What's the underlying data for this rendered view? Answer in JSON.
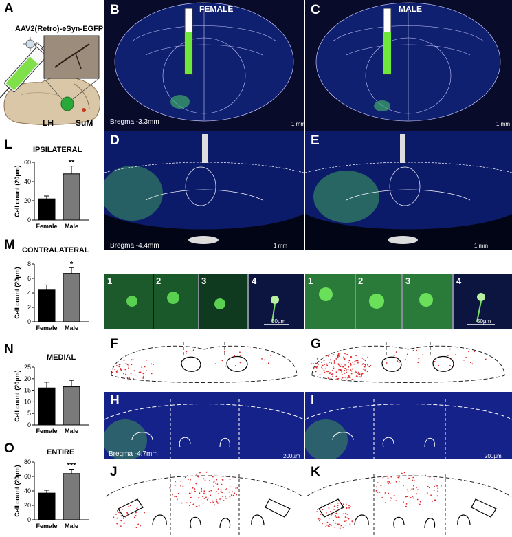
{
  "panels": {
    "A": "A",
    "B": "B",
    "C": "C",
    "D": "D",
    "E": "E",
    "F": "F",
    "G": "G",
    "H": "H",
    "I": "I",
    "J": "J",
    "K": "K",
    "L": "L",
    "M": "M",
    "N": "N",
    "O": "O"
  },
  "virus_label": "AAV2(Retro)-eSyn-EGFP",
  "region_labels": {
    "lh": "LH",
    "sum": "SuM"
  },
  "sex_labels": {
    "female": "FEMALE",
    "male": "MALE"
  },
  "bregma": {
    "b": "Bregma -3.3mm",
    "d": "Bregma -4.4mm",
    "h": "Bregma -4.7mm"
  },
  "scale_bars": {
    "mm": "1 mm",
    "um50": "50µm",
    "um200": "200µm"
  },
  "inset_numbers": [
    "1",
    "2",
    "3",
    "4"
  ],
  "colors": {
    "tissue": "#0a1450",
    "gfp": "#4fd04a",
    "dots": "#e0282a",
    "female_bar": "#000000",
    "male_bar": "#7a7a7a"
  },
  "chart_data": [
    {
      "type": "bar",
      "title": "IPSILATERAL",
      "ylabel": "Cell count (20µm)",
      "categories": [
        "Female",
        "Male"
      ],
      "values": [
        22,
        48
      ],
      "errors": [
        3,
        8
      ],
      "ylim": [
        0,
        60
      ],
      "yticks": [
        0,
        20,
        40,
        60
      ],
      "significance": "**"
    },
    {
      "type": "bar",
      "title": "CONTRALATERAL",
      "ylabel": "Cell count (20µm)",
      "categories": [
        "Female",
        "Male"
      ],
      "values": [
        4.4,
        6.7
      ],
      "errors": [
        0.7,
        0.8
      ],
      "ylim": [
        0,
        8
      ],
      "yticks": [
        0,
        2,
        4,
        6,
        8
      ],
      "significance": "*"
    },
    {
      "type": "bar",
      "title": "MEDIAL",
      "ylabel": "Cell count (20µm)",
      "categories": [
        "Female",
        "Male"
      ],
      "values": [
        16,
        16.5
      ],
      "errors": [
        2.5,
        2.8
      ],
      "ylim": [
        0,
        25
      ],
      "yticks": [
        0,
        5,
        10,
        15,
        20,
        25
      ],
      "significance": ""
    },
    {
      "type": "bar",
      "title": "ENTIRE",
      "ylabel": "Cell count (20µm)",
      "categories": [
        "Female",
        "Male"
      ],
      "values": [
        37,
        64
      ],
      "errors": [
        4,
        6
      ],
      "ylim": [
        0,
        80
      ],
      "yticks": [
        0,
        20,
        40,
        60,
        80
      ],
      "significance": "***"
    }
  ]
}
